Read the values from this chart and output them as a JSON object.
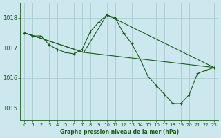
{
  "title": "Graphe pression niveau de la mer (hPa)",
  "bg_color": "#cce8ee",
  "grid_color": "#aacccc",
  "line_color": "#1a5c1a",
  "marker_color": "#1a5c1a",
  "xlim": [
    -0.5,
    23.5
  ],
  "ylim": [
    1014.6,
    1018.5
  ],
  "yticks": [
    1015,
    1016,
    1017,
    1018
  ],
  "xticks": [
    0,
    1,
    2,
    3,
    4,
    5,
    6,
    7,
    8,
    9,
    10,
    11,
    12,
    13,
    14,
    15,
    16,
    17,
    18,
    19,
    20,
    21,
    22,
    23
  ],
  "series1_x": [
    0,
    1,
    2,
    3,
    4,
    5,
    6,
    7,
    8,
    9,
    10,
    11,
    12,
    13,
    14,
    15,
    16,
    17,
    18,
    19,
    20,
    21,
    22,
    23
  ],
  "series1_y": [
    1017.5,
    1017.4,
    1017.4,
    1017.1,
    1016.95,
    1016.85,
    1016.8,
    1016.95,
    1017.55,
    1017.85,
    1018.1,
    1018.0,
    1017.5,
    1017.15,
    1016.65,
    1016.05,
    1015.75,
    1015.45,
    1015.15,
    1015.15,
    1015.45,
    1016.15,
    1016.25,
    1016.35
  ],
  "series2_x": [
    0,
    7.2,
    23
  ],
  "series2_y": [
    1017.5,
    1016.85,
    1016.35
  ],
  "series3_x": [
    0,
    7.2,
    10.0,
    23
  ],
  "series3_y": [
    1017.5,
    1016.85,
    1018.1,
    1016.35
  ]
}
